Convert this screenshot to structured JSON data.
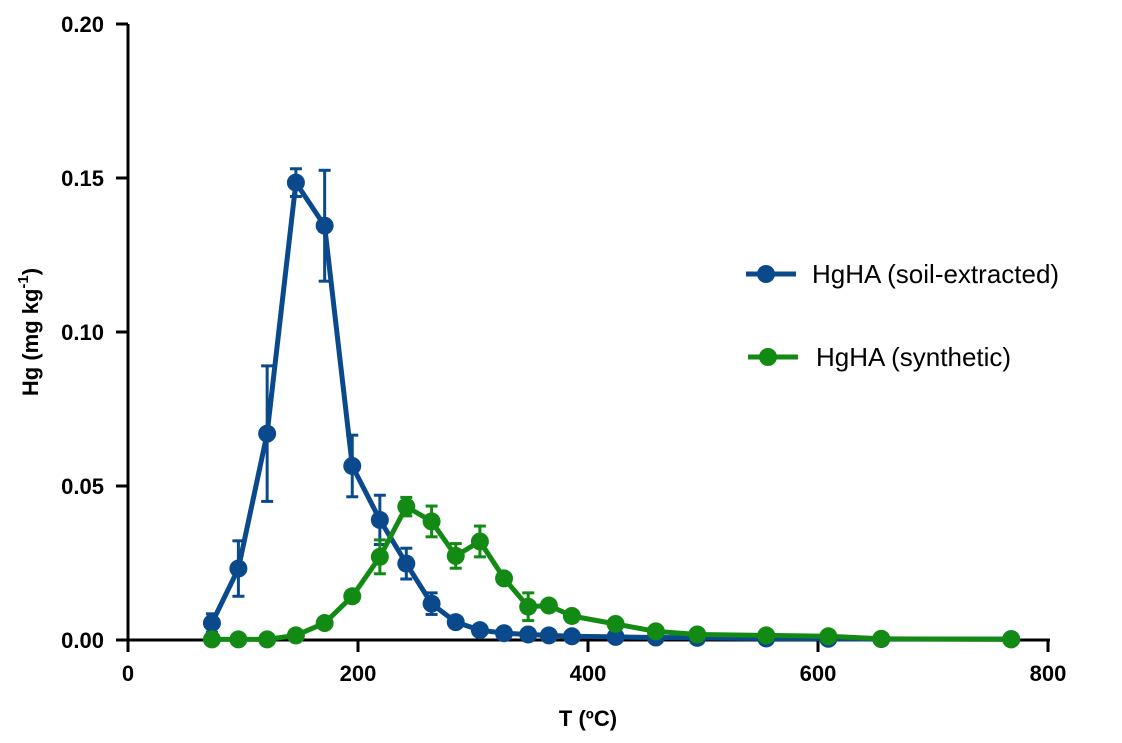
{
  "chart_data": {
    "type": "line",
    "xlabel": "T (ºC)",
    "ylabel": {
      "main": "Hg (mg kg",
      "sup": "-1",
      "end": ")"
    },
    "xlim": [
      0,
      800
    ],
    "ylim": [
      0,
      0.2
    ],
    "xticks": [
      "0",
      "200",
      "400",
      "600",
      "800"
    ],
    "yticks": [
      "0.00",
      "0.05",
      "0.10",
      "0.15",
      "0.20"
    ],
    "grid": false,
    "legend_position": "right",
    "series": [
      {
        "name": "HgHA (soil-extracted)",
        "color": "#0a4a8c",
        "points": [
          {
            "x": 73,
            "y": 0.0055,
            "err": 0.003
          },
          {
            "x": 96,
            "y": 0.0232,
            "err": 0.009
          },
          {
            "x": 121,
            "y": 0.067,
            "err": 0.022
          },
          {
            "x": 146,
            "y": 0.1485,
            "err": 0.0045
          },
          {
            "x": 171,
            "y": 0.1345,
            "err": 0.018
          },
          {
            "x": 195,
            "y": 0.0565,
            "err": 0.01
          },
          {
            "x": 219,
            "y": 0.039,
            "err": 0.008
          },
          {
            "x": 242,
            "y": 0.0248,
            "err": 0.005
          },
          {
            "x": 264,
            "y": 0.0118,
            "err": 0.0035
          },
          {
            "x": 285,
            "y": 0.0058,
            "err": 0
          },
          {
            "x": 306,
            "y": 0.0032,
            "err": 0
          },
          {
            "x": 327,
            "y": 0.0022,
            "err": 0
          },
          {
            "x": 348,
            "y": 0.0018,
            "err": 0
          },
          {
            "x": 366,
            "y": 0.0015,
            "err": 0
          },
          {
            "x": 386,
            "y": 0.0012,
            "err": 0
          },
          {
            "x": 424,
            "y": 0.001,
            "err": 0
          },
          {
            "x": 459,
            "y": 0.0008,
            "err": 0
          },
          {
            "x": 495,
            "y": 0.0007,
            "err": 0
          },
          {
            "x": 555,
            "y": 0.0005,
            "err": 0
          },
          {
            "x": 609,
            "y": 0.0004,
            "err": 0
          },
          {
            "x": 655,
            "y": 0.0003,
            "err": 0
          },
          {
            "x": 768,
            "y": 0.0003,
            "err": 0
          }
        ]
      },
      {
        "name": "HgHA (synthetic)",
        "color": "#138a13",
        "points": [
          {
            "x": 73,
            "y": 0.0002,
            "err": 0
          },
          {
            "x": 96,
            "y": 0.0002,
            "err": 0
          },
          {
            "x": 121,
            "y": 0.0002,
            "err": 0
          },
          {
            "x": 146,
            "y": 0.0015,
            "err": 0
          },
          {
            "x": 171,
            "y": 0.0055,
            "err": 0
          },
          {
            "x": 195,
            "y": 0.0142,
            "err": 0
          },
          {
            "x": 219,
            "y": 0.027,
            "err": 0.0055
          },
          {
            "x": 242,
            "y": 0.0433,
            "err": 0.003
          },
          {
            "x": 264,
            "y": 0.0385,
            "err": 0.005
          },
          {
            "x": 285,
            "y": 0.0273,
            "err": 0.004
          },
          {
            "x": 306,
            "y": 0.032,
            "err": 0.005
          },
          {
            "x": 327,
            "y": 0.02,
            "err": 0
          },
          {
            "x": 348,
            "y": 0.0108,
            "err": 0.0045
          },
          {
            "x": 366,
            "y": 0.0112,
            "err": 0
          },
          {
            "x": 386,
            "y": 0.0078,
            "err": 0
          },
          {
            "x": 424,
            "y": 0.0052,
            "err": 0
          },
          {
            "x": 459,
            "y": 0.0028,
            "err": 0
          },
          {
            "x": 495,
            "y": 0.0018,
            "err": 0
          },
          {
            "x": 555,
            "y": 0.0015,
            "err": 0
          },
          {
            "x": 609,
            "y": 0.0012,
            "err": 0
          },
          {
            "x": 655,
            "y": 0.0004,
            "err": 0
          },
          {
            "x": 768,
            "y": 0.0002,
            "err": 0
          }
        ]
      }
    ]
  }
}
